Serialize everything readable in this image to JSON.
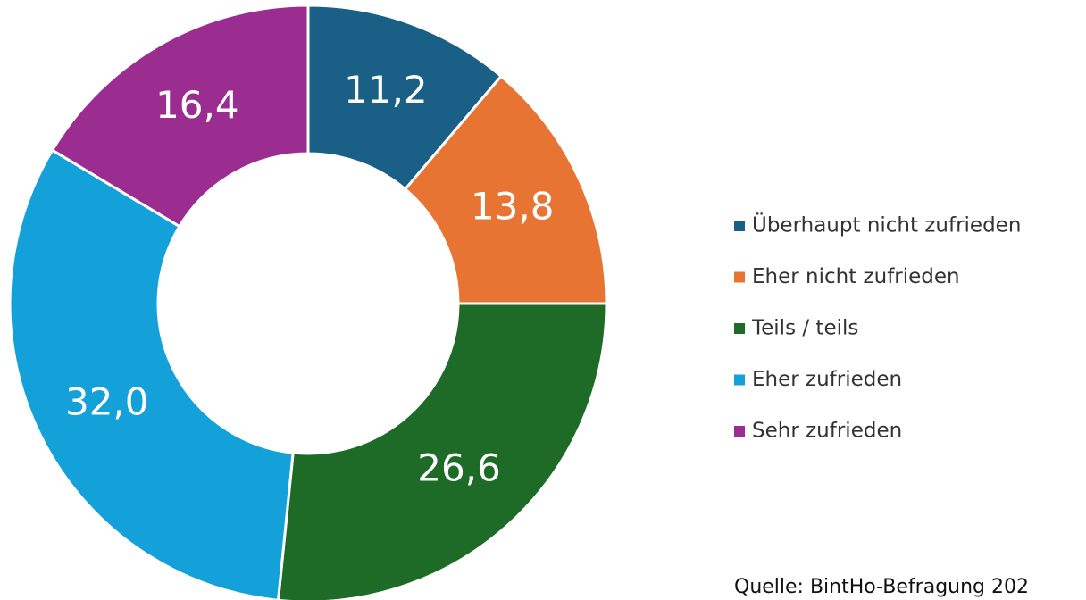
{
  "chart_data": {
    "type": "pie",
    "categories": [
      "Überhaupt nicht zufrieden",
      "Eher nicht zufrieden",
      "Teils / teils",
      "Eher zufrieden",
      "Sehr zufrieden"
    ],
    "values": [
      11.2,
      13.8,
      26.6,
      32.0,
      16.4
    ],
    "value_labels": [
      "11,2",
      "13,8",
      "26,6",
      "32,0",
      "16,4"
    ],
    "colors": [
      "#1a5f86",
      "#e87434",
      "#1e6b28",
      "#14a0d9",
      "#9b2d91"
    ],
    "legend": "right",
    "source": "Quelle: BintHo-Befragung 202"
  }
}
